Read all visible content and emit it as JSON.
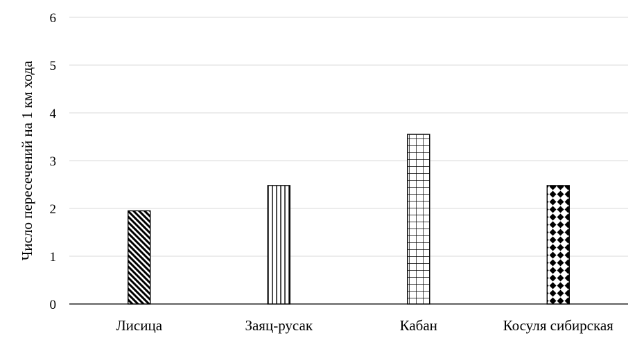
{
  "chart_data": {
    "type": "bar",
    "categories": [
      "Лисица",
      "Заяц-русак",
      "Кабан",
      "Косуля  сибирская"
    ],
    "values": [
      1.95,
      2.48,
      3.55,
      2.48
    ],
    "patterns": [
      "diagonal-stripes",
      "vertical-stripes",
      "grid",
      "diamonds"
    ],
    "title": "",
    "xlabel": "",
    "ylabel": "Число пересечений на 1 км хода",
    "ylim": [
      0,
      6
    ],
    "yticks": [
      "0",
      "1",
      "2",
      "3",
      "4",
      "5",
      "6"
    ],
    "grid": true,
    "legend": "none",
    "colors": {
      "bar_fill": "#ffffff",
      "pattern": "#000000",
      "grid": "#d9d9d9"
    }
  }
}
